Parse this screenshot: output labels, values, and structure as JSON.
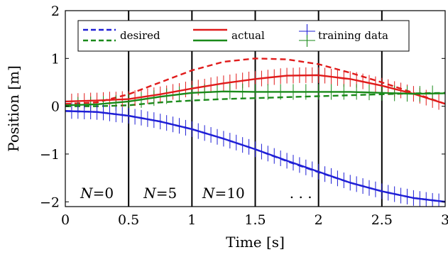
{
  "chart_data": {
    "type": "line",
    "title": "",
    "xlabel": "Time [s]",
    "ylabel": "Position [m]",
    "xlim": [
      0,
      3
    ],
    "ylim": [
      -2.1,
      2
    ],
    "xticks": [
      0,
      0.5,
      1,
      1.5,
      2,
      2.5,
      3
    ],
    "xtick_labels": [
      "0",
      "0.5",
      "1",
      "1.5",
      "2",
      "2.5",
      "3"
    ],
    "yticks": [
      -2,
      -1,
      0,
      1,
      2
    ],
    "ytick_labels": [
      "−2",
      "−1",
      "0",
      "1",
      "2"
    ],
    "grid": false,
    "legend_position": "top",
    "legend": [
      {
        "label": "desired",
        "style": "dashed",
        "colors": [
          "#1f1fd6",
          "#1a8a1a"
        ]
      },
      {
        "label": "actual",
        "style": "solid",
        "colors": [
          "#e01b1b",
          "#1a8a1a"
        ]
      },
      {
        "label": "training data",
        "style": "markers",
        "colors": [
          "#1f1fd6",
          "#1a8a1a"
        ]
      }
    ],
    "vertical_lines_x": [
      0.5,
      1,
      1.5,
      2,
      2.5
    ],
    "annotations": [
      {
        "var": "N",
        "eq": "=",
        "num": "0",
        "x": 0.25,
        "y": -1.82
      },
      {
        "var": "N",
        "eq": "=",
        "num": "5",
        "x": 0.75,
        "y": -1.82
      },
      {
        "var": "N",
        "eq": "=",
        "num": "10",
        "x": 1.25,
        "y": -1.82
      },
      {
        "var": "",
        "eq": "",
        "num": ". . .",
        "x": 1.86,
        "y": -1.82
      }
    ],
    "series": [
      {
        "name": "desired",
        "color": "#e01b1b",
        "style": "dashed",
        "x": [
          0,
          0.25,
          0.5,
          0.75,
          1,
          1.25,
          1.5,
          1.75,
          2,
          2.25,
          2.5,
          2.75,
          3
        ],
        "y": [
          0.05,
          0.08,
          0.25,
          0.5,
          0.75,
          0.93,
          1.0,
          0.98,
          0.88,
          0.7,
          0.5,
          0.28,
          0.05
        ]
      },
      {
        "name": "actual",
        "color": "#e01b1b",
        "style": "solid",
        "x": [
          0,
          0.25,
          0.5,
          0.75,
          1,
          1.25,
          1.5,
          1.75,
          2,
          2.25,
          2.5,
          2.75,
          3
        ],
        "y": [
          0.1,
          0.12,
          0.15,
          0.25,
          0.37,
          0.48,
          0.57,
          0.64,
          0.65,
          0.57,
          0.43,
          0.26,
          0.05
        ]
      },
      {
        "name": "training data",
        "color": "#e01b1b",
        "style": "markers",
        "x": [
          0.05,
          0.1,
          0.15,
          0.2,
          0.25,
          0.3,
          0.35,
          0.4,
          0.45,
          0.5,
          0.55,
          0.6,
          0.65,
          0.7,
          0.75,
          0.8,
          0.85,
          0.9,
          0.95,
          1.0,
          1.05,
          1.1,
          1.15,
          1.2,
          1.25,
          1.3,
          1.35,
          1.4,
          1.45,
          1.5,
          1.55,
          1.6,
          1.65,
          1.7,
          1.75,
          1.8,
          1.85,
          1.9,
          1.95,
          2.0,
          2.05,
          2.1,
          2.15,
          2.2,
          2.25,
          2.3,
          2.35,
          2.4,
          2.45,
          2.5,
          2.55,
          2.6,
          2.65,
          2.7,
          2.75,
          2.8,
          2.85,
          2.9,
          2.95
        ],
        "y": [
          0.1,
          0.11,
          0.11,
          0.12,
          0.12,
          0.13,
          0.14,
          0.14,
          0.15,
          0.15,
          0.17,
          0.19,
          0.21,
          0.23,
          0.25,
          0.27,
          0.3,
          0.32,
          0.35,
          0.37,
          0.39,
          0.41,
          0.44,
          0.46,
          0.48,
          0.5,
          0.52,
          0.54,
          0.56,
          0.57,
          0.58,
          0.6,
          0.61,
          0.63,
          0.64,
          0.64,
          0.65,
          0.65,
          0.65,
          0.65,
          0.64,
          0.62,
          0.59,
          0.57,
          0.57,
          0.55,
          0.52,
          0.49,
          0.46,
          0.43,
          0.4,
          0.36,
          0.33,
          0.29,
          0.26,
          0.22,
          0.18,
          0.13,
          0.09
        ]
      },
      {
        "name": "desired",
        "color": "#1a8a1a",
        "style": "dashed",
        "x": [
          0,
          0.25,
          0.5,
          0.75,
          1,
          1.25,
          1.5,
          1.75,
          2,
          2.25,
          2.5,
          2.75,
          3
        ],
        "y": [
          0.0,
          0.0,
          0.02,
          0.08,
          0.12,
          0.15,
          0.17,
          0.19,
          0.21,
          0.23,
          0.25,
          0.27,
          0.28
        ]
      },
      {
        "name": "actual",
        "color": "#1a8a1a",
        "style": "solid",
        "x": [
          0,
          0.25,
          0.5,
          0.75,
          1,
          1.25,
          1.5,
          1.75,
          2,
          2.25,
          2.5,
          2.75,
          3
        ],
        "y": [
          0.02,
          0.04,
          0.1,
          0.2,
          0.28,
          0.31,
          0.3,
          0.3,
          0.3,
          0.3,
          0.28,
          0.26,
          0.27
        ]
      },
      {
        "name": "training data",
        "color": "#1a8a1a",
        "style": "markers",
        "x": [
          0.1,
          0.2,
          0.3,
          0.4,
          0.5,
          0.6,
          0.7,
          0.8,
          0.9,
          1.0,
          1.1,
          1.2,
          1.3,
          1.4,
          1.5,
          1.6,
          1.7,
          1.8,
          1.9,
          2.0,
          2.1,
          2.2,
          2.3,
          2.4,
          2.5,
          2.6,
          2.7,
          2.8,
          2.9,
          3.0
        ],
        "y": [
          0.03,
          0.04,
          0.05,
          0.07,
          0.1,
          0.13,
          0.17,
          0.21,
          0.25,
          0.28,
          0.3,
          0.31,
          0.31,
          0.31,
          0.3,
          0.3,
          0.3,
          0.3,
          0.3,
          0.3,
          0.3,
          0.3,
          0.3,
          0.29,
          0.28,
          0.27,
          0.26,
          0.26,
          0.27,
          0.27
        ]
      },
      {
        "name": "desired",
        "color": "#1f1fd6",
        "style": "dashed",
        "x": [
          0,
          0.25,
          0.5,
          0.75,
          1,
          1.25,
          1.5,
          1.75,
          2,
          2.25,
          2.5,
          2.75,
          3
        ],
        "y": [
          -0.1,
          -0.12,
          -0.2,
          -0.32,
          -0.48,
          -0.68,
          -0.9,
          -1.15,
          -1.38,
          -1.6,
          -1.78,
          -1.92,
          -2.0
        ]
      },
      {
        "name": "actual",
        "color": "#1f1fd6",
        "style": "solid",
        "x": [
          0,
          0.25,
          0.5,
          0.75,
          1,
          1.25,
          1.5,
          1.75,
          2,
          2.25,
          2.5,
          2.75,
          3
        ],
        "y": [
          -0.1,
          -0.12,
          -0.2,
          -0.32,
          -0.48,
          -0.68,
          -0.9,
          -1.14,
          -1.37,
          -1.6,
          -1.78,
          -1.92,
          -2.0
        ]
      },
      {
        "name": "training data",
        "color": "#1f1fd6",
        "style": "markers",
        "x": [
          0.05,
          0.1,
          0.15,
          0.2,
          0.25,
          0.3,
          0.35,
          0.4,
          0.45,
          0.5,
          0.55,
          0.6,
          0.65,
          0.7,
          0.75,
          0.8,
          0.85,
          0.9,
          0.95,
          1.0,
          1.05,
          1.1,
          1.15,
          1.2,
          1.25,
          1.3,
          1.35,
          1.4,
          1.45,
          1.5,
          1.55,
          1.6,
          1.65,
          1.7,
          1.75,
          1.8,
          1.85,
          1.9,
          1.95,
          2.0,
          2.05,
          2.1,
          2.15,
          2.2,
          2.25,
          2.3,
          2.35,
          2.4,
          2.45,
          2.5,
          2.55,
          2.6,
          2.65,
          2.7,
          2.75,
          2.8,
          2.85,
          2.9,
          2.95,
          3.0
        ],
        "y": [
          -0.1,
          -0.1,
          -0.11,
          -0.11,
          -0.12,
          -0.13,
          -0.15,
          -0.17,
          -0.18,
          -0.2,
          -0.22,
          -0.24,
          -0.27,
          -0.29,
          -0.32,
          -0.35,
          -0.38,
          -0.41,
          -0.45,
          -0.48,
          -0.52,
          -0.56,
          -0.6,
          -0.64,
          -0.68,
          -0.72,
          -0.76,
          -0.81,
          -0.85,
          -0.9,
          -0.95,
          -0.99,
          -1.04,
          -1.09,
          -1.14,
          -1.18,
          -1.23,
          -1.28,
          -1.32,
          -1.37,
          -1.42,
          -1.46,
          -1.51,
          -1.55,
          -1.6,
          -1.63,
          -1.67,
          -1.71,
          -1.74,
          -1.78,
          -1.81,
          -1.84,
          -1.87,
          -1.89,
          -1.92,
          -1.94,
          -1.96,
          -1.98,
          -1.99,
          -2.0
        ]
      }
    ]
  }
}
